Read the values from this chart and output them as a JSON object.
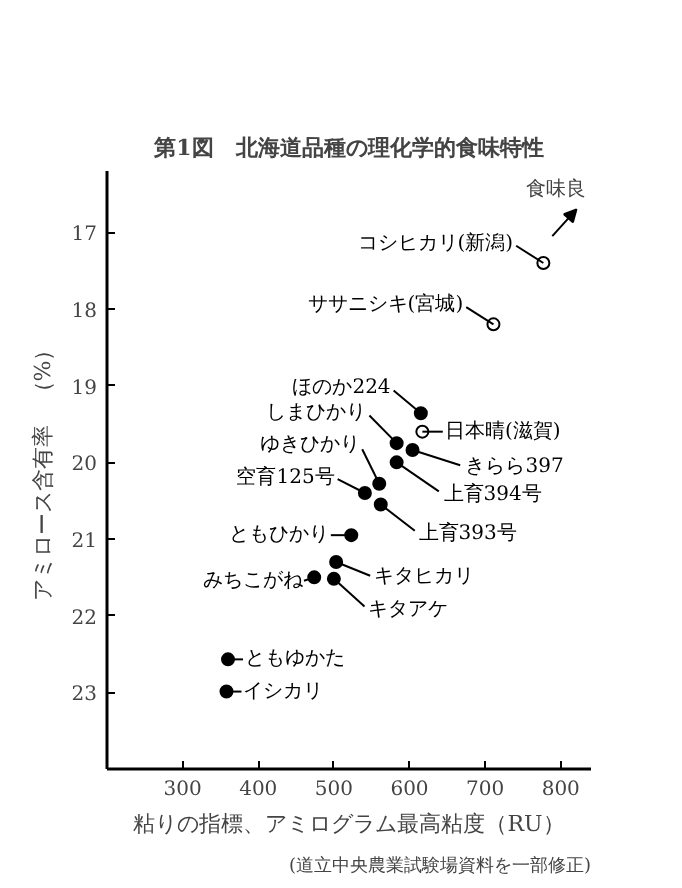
{
  "chart_data": {
    "type": "scatter",
    "title": "第1図　北海道品種の理化学的食味特性",
    "xlabel": "粘りの指標、アミログラム最高粘度（RU）",
    "ylabel": "アミロース含有率　（%）",
    "xlim": [
      200,
      840
    ],
    "ylim": [
      24,
      16.2
    ],
    "xticks": [
      300,
      400,
      500,
      600,
      700,
      800
    ],
    "yticks": [
      17,
      18,
      19,
      20,
      21,
      22,
      23
    ],
    "grid": false,
    "marker": "circle",
    "series": [
      {
        "color": "#ffffff",
        "x": [
          777,
          711,
          617
        ],
        "values": [
          17.4,
          18.2,
          19.6
        ]
      },
      {
        "color": "#000000",
        "x": [
          615,
          583,
          604,
          583,
          560,
          541,
          562,
          523,
          503,
          500,
          474,
          360,
          358
        ],
        "values": [
          19.36,
          19.75,
          19.84,
          20.0,
          20.28,
          20.4,
          20.55,
          20.95,
          21.3,
          21.52,
          21.5,
          22.57,
          22.99
        ]
      }
    ],
    "annotations": [
      {
        "text": "コシヒカリ(新潟)",
        "x": 777,
        "y": 17.4
      },
      {
        "text": "ササニシキ(宮城)",
        "x": 711,
        "y": 18.2
      },
      {
        "text": "日本晴(滋賀)",
        "x": 617,
        "y": 19.6
      },
      {
        "text": "ほのか224",
        "x": 615,
        "y": 19.36
      },
      {
        "text": "しまひかり",
        "x": 583,
        "y": 19.75
      },
      {
        "text": "きらら397",
        "x": 604,
        "y": 19.84
      },
      {
        "text": "上育394号",
        "x": 583,
        "y": 20.0
      },
      {
        "text": "ゆきひかり",
        "x": 560,
        "y": 20.28
      },
      {
        "text": "空育125号",
        "x": 541,
        "y": 20.4
      },
      {
        "text": "上育393号",
        "x": 562,
        "y": 20.55
      },
      {
        "text": "ともひかり",
        "x": 523,
        "y": 20.95
      },
      {
        "text": "キタヒカリ",
        "x": 503,
        "y": 21.3
      },
      {
        "text": "キタアケ",
        "x": 500,
        "y": 21.52
      },
      {
        "text": "みちこがね",
        "x": 474,
        "y": 21.5
      },
      {
        "text": "ともゆかた",
        "x": 360,
        "y": 22.57
      },
      {
        "text": "イシカリ",
        "x": 358,
        "y": 22.99
      },
      "食味良",
      "(道立中央農業試験場資料を一部修正)"
    ]
  }
}
